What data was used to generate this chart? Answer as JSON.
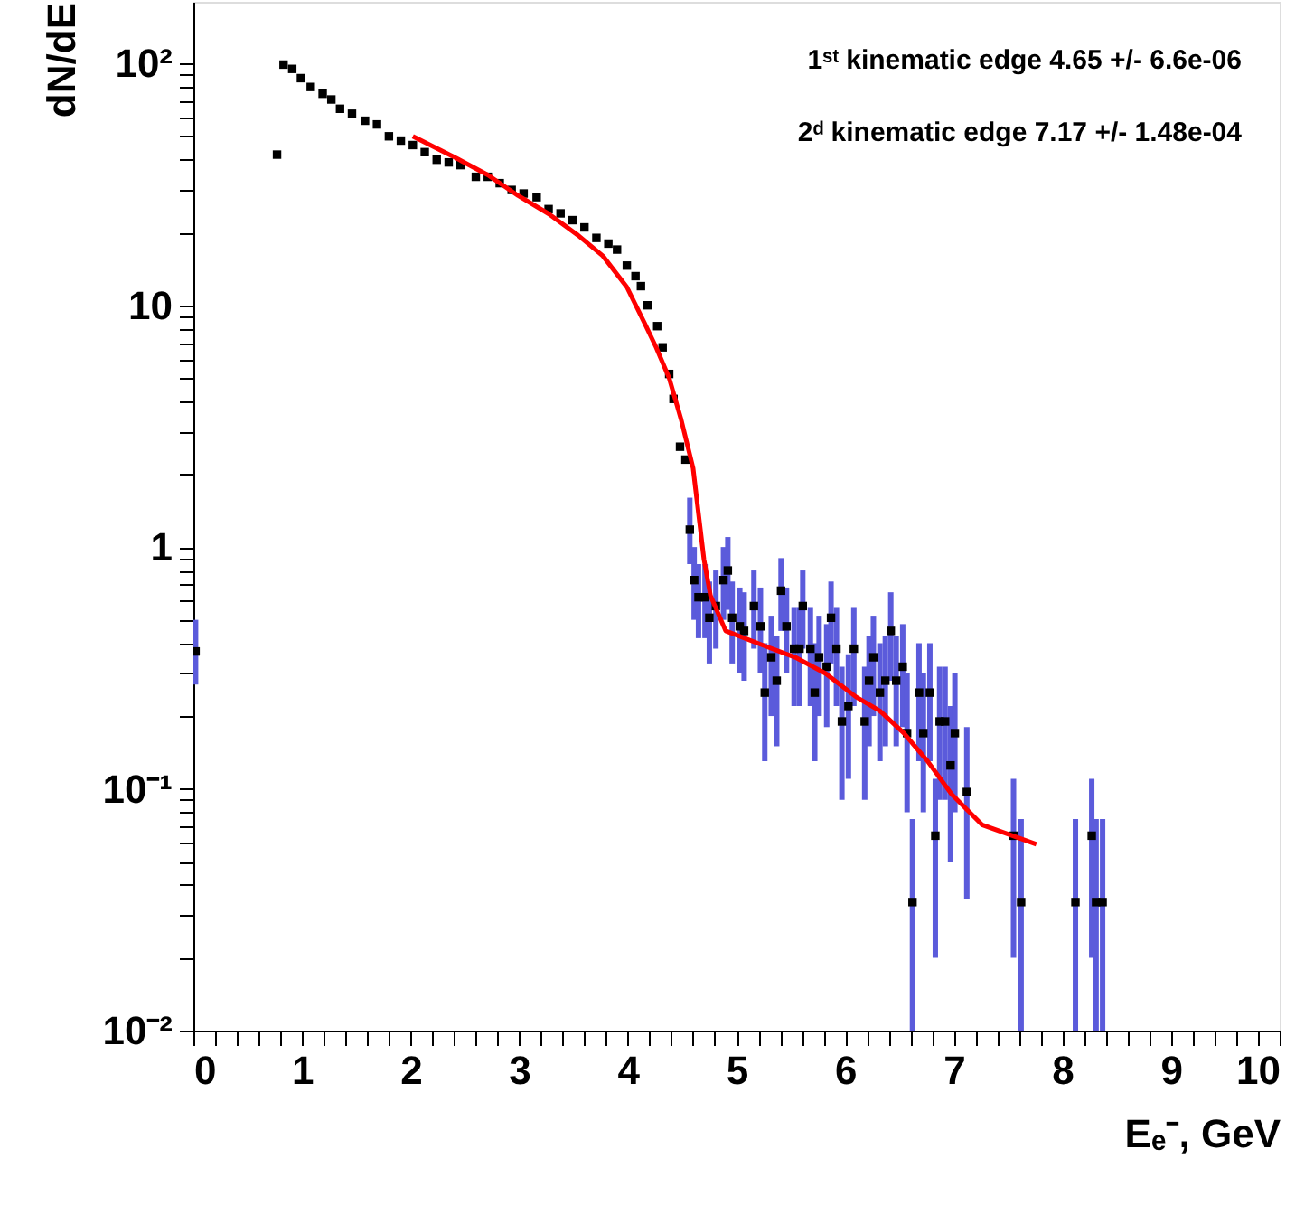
{
  "chart_data": {
    "type": "scatter",
    "xlabel": "Eₑ⁻,  GeV",
    "ylabel": "dN/dE",
    "annotations": [
      "1ˢᵗ kinematic edge 4.65 +/- 6.6e-06",
      "2ᵈ kinematic edge 7.17 +/- 1.48e-04"
    ],
    "log": "y",
    "grid": false,
    "xlim": [
      0,
      10
    ],
    "ylim": [
      0.01,
      180
    ],
    "xticks": [
      0,
      {
        "value": 0.2,
        "label": null
      },
      {
        "value": 0.4,
        "label": null
      },
      {
        "value": 0.6,
        "label": null
      },
      {
        "value": 0.8,
        "label": null
      },
      1,
      {
        "value": 1.2,
        "label": null
      },
      {
        "value": 1.4,
        "label": null
      },
      {
        "value": 1.6,
        "label": null
      },
      {
        "value": 1.8,
        "label": null
      },
      2,
      {
        "value": 2.2,
        "label": null
      },
      {
        "value": 2.4,
        "label": null
      },
      {
        "value": 2.6,
        "label": null
      },
      {
        "value": 2.8,
        "label": null
      },
      3,
      {
        "value": 3.2,
        "label": null
      },
      {
        "value": 3.4,
        "label": null
      },
      {
        "value": 3.6,
        "label": null
      },
      {
        "value": 3.8,
        "label": null
      },
      4,
      {
        "value": 4.2,
        "label": null
      },
      {
        "value": 4.4,
        "label": null
      },
      {
        "value": 4.6,
        "label": null
      },
      {
        "value": 4.8,
        "label": null
      },
      5,
      {
        "value": 5.2,
        "label": null
      },
      {
        "value": 5.4,
        "label": null
      },
      {
        "value": 5.6,
        "label": null
      },
      {
        "value": 5.8,
        "label": null
      },
      6,
      {
        "value": 6.2,
        "label": null
      },
      {
        "value": 6.4,
        "label": null
      },
      {
        "value": 6.6,
        "label": null
      },
      {
        "value": 6.8,
        "label": null
      },
      7,
      {
        "value": 7.2,
        "label": null
      },
      {
        "value": 7.4,
        "label": null
      },
      {
        "value": 7.6,
        "label": null
      },
      {
        "value": 7.8,
        "label": null
      },
      8,
      {
        "value": 8.2,
        "label": null
      },
      {
        "value": 8.4,
        "label": null
      },
      {
        "value": 8.6,
        "label": null
      },
      {
        "value": 8.8,
        "label": null
      },
      9,
      {
        "value": 9.2,
        "label": null
      },
      {
        "value": 9.4,
        "label": null
      },
      {
        "value": 9.6,
        "label": null
      },
      {
        "value": 9.8,
        "label": null
      },
      10
    ],
    "yticks": [
      {
        "value": 0.01,
        "label": "10⁻²"
      },
      {
        "value": 0.02,
        "label": null
      },
      {
        "value": 0.03,
        "label": null
      },
      {
        "value": 0.04,
        "label": null
      },
      {
        "value": 0.05,
        "label": null
      },
      {
        "value": 0.06,
        "label": null
      },
      {
        "value": 0.07,
        "label": null
      },
      {
        "value": 0.08,
        "label": null
      },
      {
        "value": 0.09,
        "label": null
      },
      {
        "value": 0.1,
        "label": "10⁻¹"
      },
      {
        "value": 0.2,
        "label": null
      },
      {
        "value": 0.3,
        "label": null
      },
      {
        "value": 0.4,
        "label": null
      },
      {
        "value": 0.5,
        "label": null
      },
      {
        "value": 0.6,
        "label": null
      },
      {
        "value": 0.7,
        "label": null
      },
      {
        "value": 0.8,
        "label": null
      },
      {
        "value": 0.9,
        "label": null
      },
      1,
      {
        "value": 2,
        "label": null
      },
      {
        "value": 3,
        "label": null
      },
      {
        "value": 4,
        "label": null
      },
      {
        "value": 5,
        "label": null
      },
      {
        "value": 6,
        "label": null
      },
      {
        "value": 7,
        "label": null
      },
      {
        "value": 8,
        "label": null
      },
      {
        "value": 9,
        "label": null
      },
      10,
      {
        "value": 20,
        "label": null
      },
      {
        "value": 30,
        "label": null
      },
      {
        "value": 40,
        "label": null
      },
      {
        "value": 50,
        "label": null
      },
      {
        "value": 60,
        "label": null
      },
      {
        "value": 70,
        "label": null
      },
      {
        "value": 80,
        "label": null
      },
      {
        "value": 90,
        "label": null
      },
      {
        "value": 100,
        "label": "10²"
      }
    ],
    "series": [
      {
        "color": "#000000",
        "marker": "square",
        "x": [
          0.02,
          0.77,
          0.83,
          0.91,
          0.99,
          1.08,
          1.19,
          1.27,
          1.35,
          1.46,
          1.58,
          1.69,
          1.8,
          1.91,
          2.02,
          2.13,
          2.24,
          2.35,
          2.46,
          2.6,
          2.71,
          2.82,
          2.93,
          3.04,
          3.16,
          3.27,
          3.38,
          3.49,
          3.6,
          3.71,
          3.82,
          3.9,
          3.99,
          4.07,
          4.12,
          4.18,
          4.27,
          4.32,
          4.38,
          4.42,
          4.48,
          4.53,
          4.57,
          4.61,
          4.65,
          4.71,
          4.75,
          4.81,
          4.88,
          4.92,
          4.96,
          5.03,
          5.07,
          5.16,
          5.22,
          5.26,
          5.32,
          5.37,
          5.41,
          5.46,
          5.53,
          5.58,
          5.61,
          5.68,
          5.72,
          5.76,
          5.83,
          5.87,
          5.92,
          5.97,
          6.03,
          6.08,
          6.18,
          6.22,
          6.26,
          6.32,
          6.37,
          6.42,
          6.47,
          6.53,
          6.57,
          6.62,
          6.68,
          6.72,
          6.78,
          6.83,
          6.87,
          6.92,
          6.97,
          7.01,
          7.12,
          7.55,
          7.62,
          8.12,
          8.27,
          8.31,
          8.37
        ],
        "values": [
          0.37,
          42,
          99,
          95,
          87,
          80,
          75,
          71,
          65,
          62,
          58,
          56,
          50,
          48,
          46,
          43,
          40,
          39,
          38,
          34,
          34,
          32,
          30,
          29,
          28,
          25,
          24,
          22.5,
          21,
          19,
          18,
          17,
          14.6,
          13.2,
          12,
          10,
          8.2,
          6.7,
          5.2,
          4.1,
          2.6,
          2.3,
          1.18,
          0.73,
          0.62,
          0.62,
          0.51,
          0.57,
          0.73,
          0.8,
          0.51,
          0.47,
          0.45,
          0.57,
          0.47,
          0.25,
          0.35,
          0.28,
          0.66,
          0.47,
          0.38,
          0.38,
          0.57,
          0.38,
          0.25,
          0.35,
          0.32,
          0.51,
          0.38,
          0.19,
          0.22,
          0.38,
          0.19,
          0.28,
          0.35,
          0.25,
          0.28,
          0.45,
          0.28,
          0.32,
          0.17,
          0.034,
          0.25,
          0.17,
          0.25,
          0.064,
          0.19,
          0.19,
          0.125,
          0.17,
          0.097,
          0.064,
          0.034,
          0.034,
          0.064,
          0.034,
          0.034
        ],
        "errors": [
          [
            0.27,
            0.5
          ],
          null,
          null,
          null,
          null,
          null,
          null,
          null,
          null,
          null,
          null,
          null,
          null,
          null,
          null,
          null,
          null,
          null,
          null,
          null,
          null,
          null,
          null,
          null,
          null,
          null,
          null,
          null,
          null,
          null,
          null,
          null,
          null,
          null,
          null,
          null,
          null,
          null,
          null,
          null,
          null,
          null,
          [
            0.85,
            1.6
          ],
          [
            0.5,
            1.0
          ],
          [
            0.42,
            0.85
          ],
          [
            0.42,
            0.85
          ],
          [
            0.33,
            0.72
          ],
          [
            0.38,
            0.8
          ],
          [
            0.5,
            1.0
          ],
          [
            0.55,
            1.1
          ],
          [
            0.33,
            0.72
          ],
          [
            0.3,
            0.68
          ],
          [
            0.28,
            0.65
          ],
          [
            0.38,
            0.8
          ],
          [
            0.3,
            0.68
          ],
          [
            0.13,
            0.4
          ],
          [
            0.2,
            0.52
          ],
          [
            0.15,
            0.43
          ],
          [
            0.45,
            0.9
          ],
          [
            0.3,
            0.68
          ],
          [
            0.22,
            0.56
          ],
          [
            0.22,
            0.56
          ],
          [
            0.38,
            0.8
          ],
          [
            0.22,
            0.56
          ],
          [
            0.13,
            0.4
          ],
          [
            0.2,
            0.52
          ],
          [
            0.18,
            0.48
          ],
          [
            0.33,
            0.72
          ],
          [
            0.22,
            0.56
          ],
          [
            0.09,
            0.32
          ],
          [
            0.11,
            0.36
          ],
          [
            0.22,
            0.56
          ],
          [
            0.09,
            0.32
          ],
          [
            0.15,
            0.43
          ],
          [
            0.2,
            0.52
          ],
          [
            0.13,
            0.4
          ],
          [
            0.15,
            0.43
          ],
          [
            0.28,
            0.65
          ],
          [
            0.15,
            0.43
          ],
          [
            0.18,
            0.48
          ],
          [
            0.08,
            0.3
          ],
          [
            0.01,
            0.075
          ],
          [
            0.13,
            0.4
          ],
          [
            0.08,
            0.3
          ],
          [
            0.13,
            0.4
          ],
          [
            0.02,
            0.11
          ],
          [
            0.09,
            0.32
          ],
          [
            0.09,
            0.32
          ],
          [
            0.05,
            0.22
          ],
          [
            0.08,
            0.3
          ],
          [
            0.035,
            0.18
          ],
          [
            0.02,
            0.11
          ],
          [
            0.01,
            0.075
          ],
          [
            0.01,
            0.075
          ],
          [
            0.02,
            0.11
          ],
          [
            0.01,
            0.075
          ],
          [
            0.01,
            0.075
          ]
        ]
      },
      {
        "type": "line",
        "color": "#ff0000",
        "line_style": "solid",
        "x": [
          2.02,
          2.38,
          2.71,
          2.99,
          3.27,
          3.54,
          3.77,
          3.99,
          4.15,
          4.26,
          4.38,
          4.49,
          4.6,
          4.66,
          4.7,
          4.76,
          4.9,
          5.26,
          5.54,
          5.82,
          6.1,
          6.32,
          6.54,
          6.76,
          6.98,
          7.26,
          7.54,
          7.76
        ],
        "values": [
          50,
          41.5,
          34.6,
          28.4,
          23.9,
          19.5,
          16.0,
          11.9,
          8.5,
          6.7,
          5.0,
          3.37,
          2.12,
          1.26,
          0.89,
          0.63,
          0.45,
          0.39,
          0.35,
          0.3,
          0.24,
          0.21,
          0.17,
          0.13,
          0.095,
          0.071,
          0.064,
          0.059
        ]
      }
    ]
  }
}
